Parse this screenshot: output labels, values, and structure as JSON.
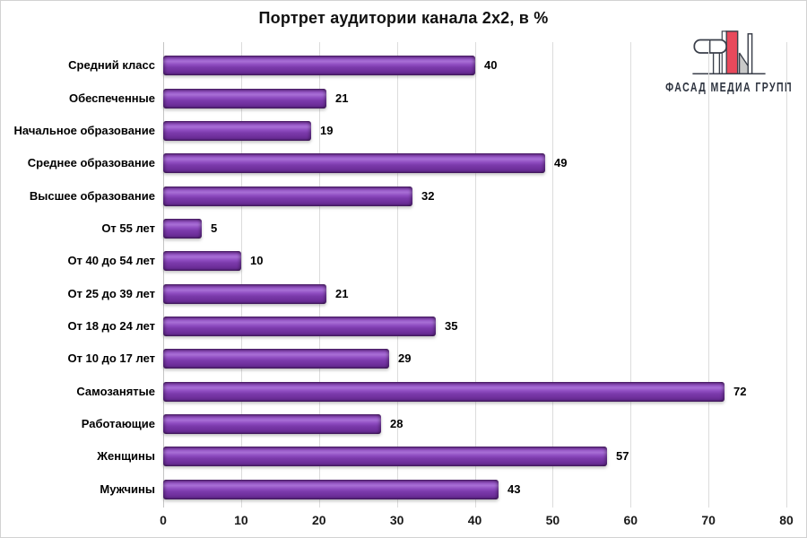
{
  "title": "Портрет аудитории канала 2x2, в %",
  "logo": {
    "text": "ФАСАД МЕДИА ГРУПП",
    "accent_color": "#e8495c",
    "outline_color": "#3a3f4a",
    "shade_color": "#c9c9c9"
  },
  "chart_data": {
    "type": "bar",
    "orientation": "horizontal",
    "title": "Портрет аудитории канала 2x2, в %",
    "categories": [
      "Средний класс",
      "Обеспеченные",
      "Начальное образование",
      "Среднее образование",
      "Высшее образование",
      "От 55 лет",
      "От 40 до 54 лет",
      "От 25 до 39 лет",
      "От 18 до 24 лет",
      "От 10 до 17 лет",
      "Самозанятые",
      "Работающие",
      "Женщины",
      "Мужчины"
    ],
    "values": [
      40,
      21,
      19,
      49,
      32,
      5,
      10,
      21,
      35,
      29,
      72,
      28,
      57,
      43
    ],
    "xlim": [
      0,
      80
    ],
    "x_ticks": [
      0,
      10,
      20,
      30,
      40,
      50,
      60,
      70,
      80
    ],
    "bar_color": "#7b3aab",
    "bar_highlight": "#a86fd6",
    "grid": true,
    "gridline_color": "#dcdcdc",
    "value_labels": true,
    "legend": "none"
  }
}
